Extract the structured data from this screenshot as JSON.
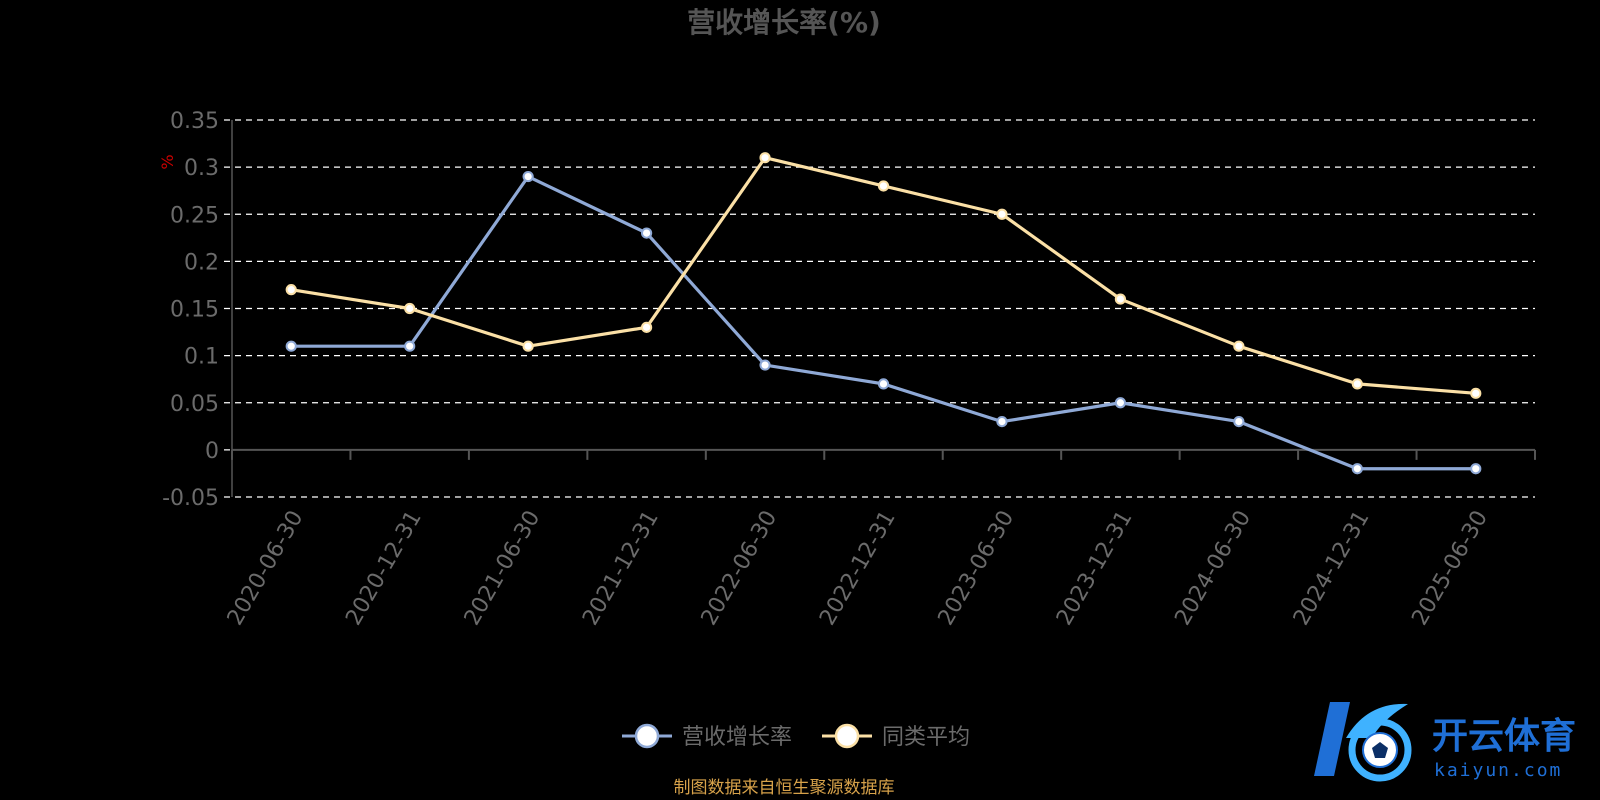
{
  "colors": {
    "background": "#000000",
    "title": "#555555",
    "axis_text": "#6b6b6b",
    "grid": "#ffffff",
    "axis_line": "#555555",
    "unit": "#cc0000",
    "series_revenue": "#8fa9d6",
    "series_peer": "#fbe0a6",
    "source": "#d7a24a",
    "logo_blue": "#1f6fd6",
    "logo_cyan": "#3fb2ff"
  },
  "chart_data": {
    "type": "line",
    "title": "营收增长率(%)",
    "y_unit": "%",
    "categories": [
      "2020-06-30",
      "2020-12-31",
      "2021-06-30",
      "2021-12-31",
      "2022-06-30",
      "2022-12-31",
      "2023-06-30",
      "2023-12-31",
      "2024-06-30",
      "2024-12-31",
      "2025-06-30"
    ],
    "y_ticks": [
      "0.35",
      "0.3",
      "0.25",
      "0.2",
      "0.15",
      "0.1",
      "0.05",
      "0",
      "-0.05"
    ],
    "ylim": [
      -0.05,
      0.35
    ],
    "grid": true,
    "legend_position": "bottom-center",
    "series": [
      {
        "name": "营收增长率",
        "values": [
          0.11,
          0.11,
          0.29,
          0.23,
          0.09,
          0.07,
          0.03,
          0.05,
          0.03,
          -0.02,
          -0.02
        ]
      },
      {
        "name": "同类平均",
        "values": [
          0.17,
          0.15,
          0.11,
          0.13,
          0.31,
          0.28,
          0.25,
          0.16,
          0.11,
          0.07,
          0.06
        ]
      }
    ]
  },
  "source_text": "制图数据来自恒生聚源数据库",
  "watermark": {
    "name_cn": "开云体育",
    "name_en": "kaiyun.com",
    "icon": "k-soccer-ball-logo-icon"
  }
}
